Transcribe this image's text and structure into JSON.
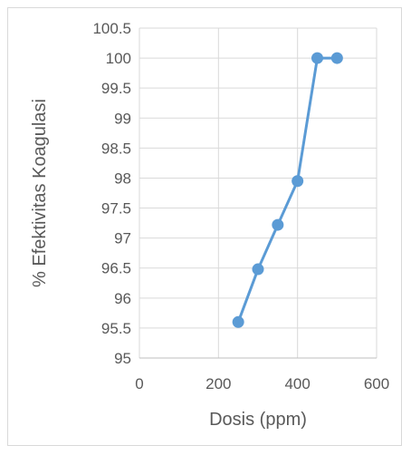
{
  "chart_data": {
    "type": "scatter",
    "title": "",
    "xlabel": "Dosis (ppm)",
    "ylabel": "% Efektivitas Koagulasi",
    "xlim": [
      0,
      600
    ],
    "ylim": [
      95,
      100.5
    ],
    "x_ticks": [
      "0",
      "200",
      "400",
      "600"
    ],
    "y_ticks": [
      "95",
      "95.5",
      "96",
      "96.5",
      "97",
      "97.5",
      "98",
      "98.5",
      "99",
      "99.5",
      "100",
      "100.5"
    ],
    "grid": true,
    "legend": "none",
    "series": [
      {
        "x": [
          250,
          300,
          350,
          400,
          450,
          500
        ],
        "y": [
          95.6,
          96.48,
          97.22,
          97.95,
          100,
          100
        ],
        "color": "#5b9bd5",
        "markers": true,
        "line": "straight"
      }
    ]
  }
}
